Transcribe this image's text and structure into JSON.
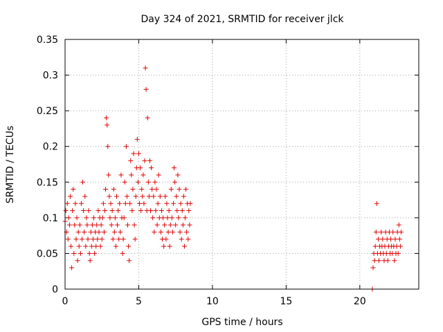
{
  "chart_data": {
    "type": "scatter",
    "title": "Day 324 of 2021, SRMTID for receiver jlck",
    "xlabel": "GPS time / hours",
    "ylabel": "SRMTID / TECUs",
    "xlim": [
      0,
      24
    ],
    "ylim": [
      0,
      0.35
    ],
    "xticks": [
      0,
      5,
      10,
      15,
      20
    ],
    "xtick_labels": [
      "0",
      "5",
      "10",
      "15",
      "20"
    ],
    "yticks": [
      0,
      0.05,
      0.1,
      0.15,
      0.2,
      0.25,
      0.3,
      0.35
    ],
    "ytick_labels": [
      "0",
      "0.05",
      "0.1",
      "0.15",
      "0.2",
      "0.25",
      "0.3",
      "0.35"
    ],
    "grid": true,
    "marker": "+",
    "color": "#e00000",
    "series": [
      {
        "points": [
          [
            0.0,
            0.095
          ],
          [
            0.05,
            0.11
          ],
          [
            0.1,
            0.08
          ],
          [
            0.15,
            0.12
          ],
          [
            0.2,
            0.07
          ],
          [
            0.25,
            0.1
          ],
          [
            0.3,
            0.09
          ],
          [
            0.35,
            0.13
          ],
          [
            0.4,
            0.06
          ],
          [
            0.45,
            0.03
          ],
          [
            0.5,
            0.11
          ],
          [
            0.55,
            0.14
          ],
          [
            0.6,
            0.05
          ],
          [
            0.65,
            0.09
          ],
          [
            0.7,
            0.12
          ],
          [
            0.75,
            0.07
          ],
          [
            0.8,
            0.1
          ],
          [
            0.85,
            0.04
          ],
          [
            0.9,
            0.08
          ],
          [
            0.95,
            0.06
          ],
          [
            1.0,
            0.09
          ],
          [
            1.05,
            0.05
          ],
          [
            1.1,
            0.12
          ],
          [
            1.15,
            0.07
          ],
          [
            1.2,
            0.15
          ],
          [
            1.25,
            0.11
          ],
          [
            1.3,
            0.08
          ],
          [
            1.35,
            0.13
          ],
          [
            1.4,
            0.06
          ],
          [
            1.45,
            0.1
          ],
          [
            1.5,
            0.09
          ],
          [
            1.55,
            0.07
          ],
          [
            1.6,
            0.11
          ],
          [
            1.65,
            0.05
          ],
          [
            1.7,
            0.04
          ],
          [
            1.75,
            0.08
          ],
          [
            1.8,
            0.06
          ],
          [
            1.85,
            0.09
          ],
          [
            1.9,
            0.07
          ],
          [
            1.95,
            0.1
          ],
          [
            2.0,
            0.05
          ],
          [
            2.05,
            0.08
          ],
          [
            2.1,
            0.06
          ],
          [
            2.15,
            0.09
          ],
          [
            2.2,
            0.07
          ],
          [
            2.25,
            0.11
          ],
          [
            2.3,
            0.08
          ],
          [
            2.35,
            0.1
          ],
          [
            2.4,
            0.06
          ],
          [
            2.45,
            0.09
          ],
          [
            2.5,
            0.07
          ],
          [
            2.55,
            0.1
          ],
          [
            2.6,
            0.12
          ],
          [
            2.65,
            0.08
          ],
          [
            2.7,
            0.11
          ],
          [
            2.75,
            0.14
          ],
          [
            2.8,
            0.24
          ],
          [
            2.85,
            0.23
          ],
          [
            2.9,
            0.2
          ],
          [
            2.95,
            0.16
          ],
          [
            3.0,
            0.13
          ],
          [
            3.05,
            0.1
          ],
          [
            3.1,
            0.12
          ],
          [
            3.15,
            0.09
          ],
          [
            3.2,
            0.11
          ],
          [
            3.25,
            0.07
          ],
          [
            3.3,
            0.14
          ],
          [
            3.35,
            0.08
          ],
          [
            3.4,
            0.1
          ],
          [
            3.45,
            0.06
          ],
          [
            3.5,
            0.13
          ],
          [
            3.55,
            0.09
          ],
          [
            3.6,
            0.11
          ],
          [
            3.65,
            0.07
          ],
          [
            3.7,
            0.12
          ],
          [
            3.75,
            0.08
          ],
          [
            3.8,
            0.16
          ],
          [
            3.85,
            0.1
          ],
          [
            3.9,
            0.05
          ],
          [
            3.95,
            0.07
          ],
          [
            4.0,
            0.1
          ],
          [
            4.05,
            0.15
          ],
          [
            4.1,
            0.12
          ],
          [
            4.15,
            0.2
          ],
          [
            4.2,
            0.13
          ],
          [
            4.25,
            0.09
          ],
          [
            4.3,
            0.06
          ],
          [
            4.35,
            0.04
          ],
          [
            4.4,
            0.12
          ],
          [
            4.45,
            0.18
          ],
          [
            4.5,
            0.16
          ],
          [
            4.55,
            0.11
          ],
          [
            4.6,
            0.14
          ],
          [
            4.65,
            0.19
          ],
          [
            4.7,
            0.09
          ],
          [
            4.75,
            0.07
          ],
          [
            4.8,
            0.13
          ],
          [
            4.85,
            0.17
          ],
          [
            4.9,
            0.21
          ],
          [
            4.95,
            0.15
          ],
          [
            5.0,
            0.19
          ],
          [
            5.05,
            0.12
          ],
          [
            5.1,
            0.17
          ],
          [
            5.15,
            0.11
          ],
          [
            5.2,
            0.14
          ],
          [
            5.25,
            0.13
          ],
          [
            5.3,
            0.16
          ],
          [
            5.35,
            0.12
          ],
          [
            5.4,
            0.18
          ],
          [
            5.45,
            0.31
          ],
          [
            5.5,
            0.28
          ],
          [
            5.55,
            0.11
          ],
          [
            5.6,
            0.24
          ],
          [
            5.65,
            0.15
          ],
          [
            5.7,
            0.13
          ],
          [
            5.75,
            0.18
          ],
          [
            5.8,
            0.11
          ],
          [
            5.85,
            0.17
          ],
          [
            5.9,
            0.14
          ],
          [
            5.95,
            0.1
          ],
          [
            6.0,
            0.13
          ],
          [
            6.05,
            0.08
          ],
          [
            6.1,
            0.15
          ],
          [
            6.15,
            0.11
          ],
          [
            6.2,
            0.14
          ],
          [
            6.25,
            0.09
          ],
          [
            6.3,
            0.12
          ],
          [
            6.35,
            0.16
          ],
          [
            6.4,
            0.1
          ],
          [
            6.45,
            0.13
          ],
          [
            6.5,
            0.08
          ],
          [
            6.55,
            0.11
          ],
          [
            6.6,
            0.07
          ],
          [
            6.65,
            0.1
          ],
          [
            6.7,
            0.06
          ],
          [
            6.75,
            0.09
          ],
          [
            6.8,
            0.13
          ],
          [
            6.85,
            0.07
          ],
          [
            6.9,
            0.12
          ],
          [
            6.95,
            0.1
          ],
          [
            7.0,
            0.08
          ],
          [
            7.05,
            0.11
          ],
          [
            7.1,
            0.06
          ],
          [
            7.15,
            0.09
          ],
          [
            7.2,
            0.14
          ],
          [
            7.25,
            0.1
          ],
          [
            7.3,
            0.08
          ],
          [
            7.35,
            0.12
          ],
          [
            7.4,
            0.17
          ],
          [
            7.45,
            0.15
          ],
          [
            7.5,
            0.09
          ],
          [
            7.55,
            0.13
          ],
          [
            7.6,
            0.11
          ],
          [
            7.65,
            0.16
          ],
          [
            7.7,
            0.1
          ],
          [
            7.75,
            0.14
          ],
          [
            7.8,
            0.08
          ],
          [
            7.85,
            0.12
          ],
          [
            7.9,
            0.07
          ],
          [
            7.95,
            0.11
          ],
          [
            8.0,
            0.09
          ],
          [
            8.05,
            0.13
          ],
          [
            8.1,
            0.06
          ],
          [
            8.15,
            0.1
          ],
          [
            8.2,
            0.14
          ],
          [
            8.25,
            0.08
          ],
          [
            8.3,
            0.12
          ],
          [
            8.35,
            0.07
          ],
          [
            8.4,
            0.11
          ],
          [
            8.45,
            0.09
          ],
          [
            8.5,
            0.12
          ],
          [
            20.85,
            0.0
          ],
          [
            20.9,
            0.03
          ],
          [
            20.95,
            0.05
          ],
          [
            21.0,
            0.04
          ],
          [
            21.05,
            0.06
          ],
          [
            21.1,
            0.08
          ],
          [
            21.15,
            0.12
          ],
          [
            21.2,
            0.05
          ],
          [
            21.25,
            0.07
          ],
          [
            21.3,
            0.04
          ],
          [
            21.35,
            0.06
          ],
          [
            21.4,
            0.05
          ],
          [
            21.45,
            0.08
          ],
          [
            21.5,
            0.06
          ],
          [
            21.55,
            0.07
          ],
          [
            21.6,
            0.05
          ],
          [
            21.65,
            0.04
          ],
          [
            21.7,
            0.06
          ],
          [
            21.75,
            0.08
          ],
          [
            21.8,
            0.05
          ],
          [
            21.85,
            0.07
          ],
          [
            21.9,
            0.04
          ],
          [
            21.95,
            0.06
          ],
          [
            22.0,
            0.08
          ],
          [
            22.05,
            0.05
          ],
          [
            22.1,
            0.07
          ],
          [
            22.15,
            0.06
          ],
          [
            22.2,
            0.05
          ],
          [
            22.25,
            0.08
          ],
          [
            22.3,
            0.06
          ],
          [
            22.35,
            0.04
          ],
          [
            22.4,
            0.07
          ],
          [
            22.45,
            0.05
          ],
          [
            22.5,
            0.06
          ],
          [
            22.55,
            0.08
          ],
          [
            22.6,
            0.05
          ],
          [
            22.65,
            0.09
          ],
          [
            22.7,
            0.07
          ],
          [
            22.75,
            0.06
          ],
          [
            22.8,
            0.08
          ]
        ]
      }
    ]
  }
}
